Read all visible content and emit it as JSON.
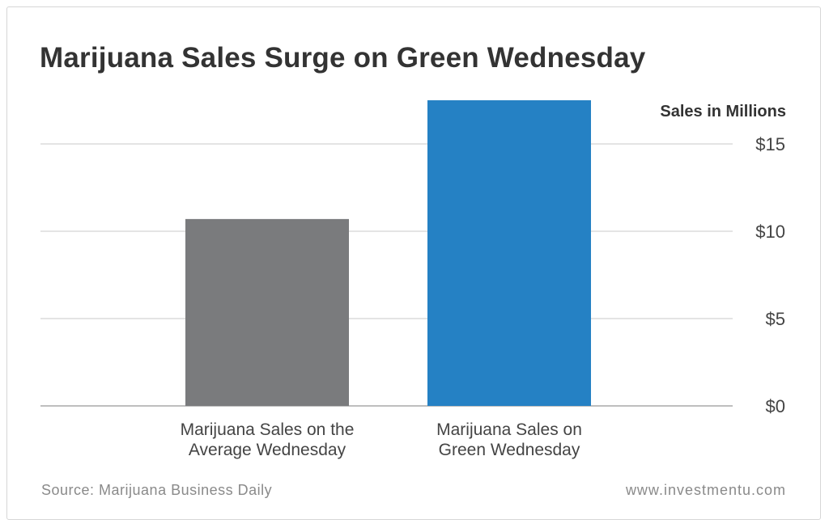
{
  "chart_data": {
    "type": "bar",
    "title": "Marijuana Sales Surge on Green Wednesday",
    "ylabel": "Sales in Millions",
    "xlabel": "",
    "categories": [
      "Marijuana Sales on the\nAverage Wednesday",
      "Marijuana Sales on\nGreen Wednesday"
    ],
    "values": [
      10.7,
      17.5
    ],
    "colors": [
      "#7a7b7d",
      "#2581c4"
    ],
    "ylim": [
      0,
      17.5
    ],
    "yticks": [
      0,
      5,
      10,
      15
    ],
    "ytick_labels": [
      "$0",
      "$5",
      "$10",
      "$15"
    ],
    "grid": true,
    "y_axis_side": "right"
  },
  "footer": {
    "source": "Source: Marijuana Business Daily",
    "site": "www.investmentu.com"
  }
}
